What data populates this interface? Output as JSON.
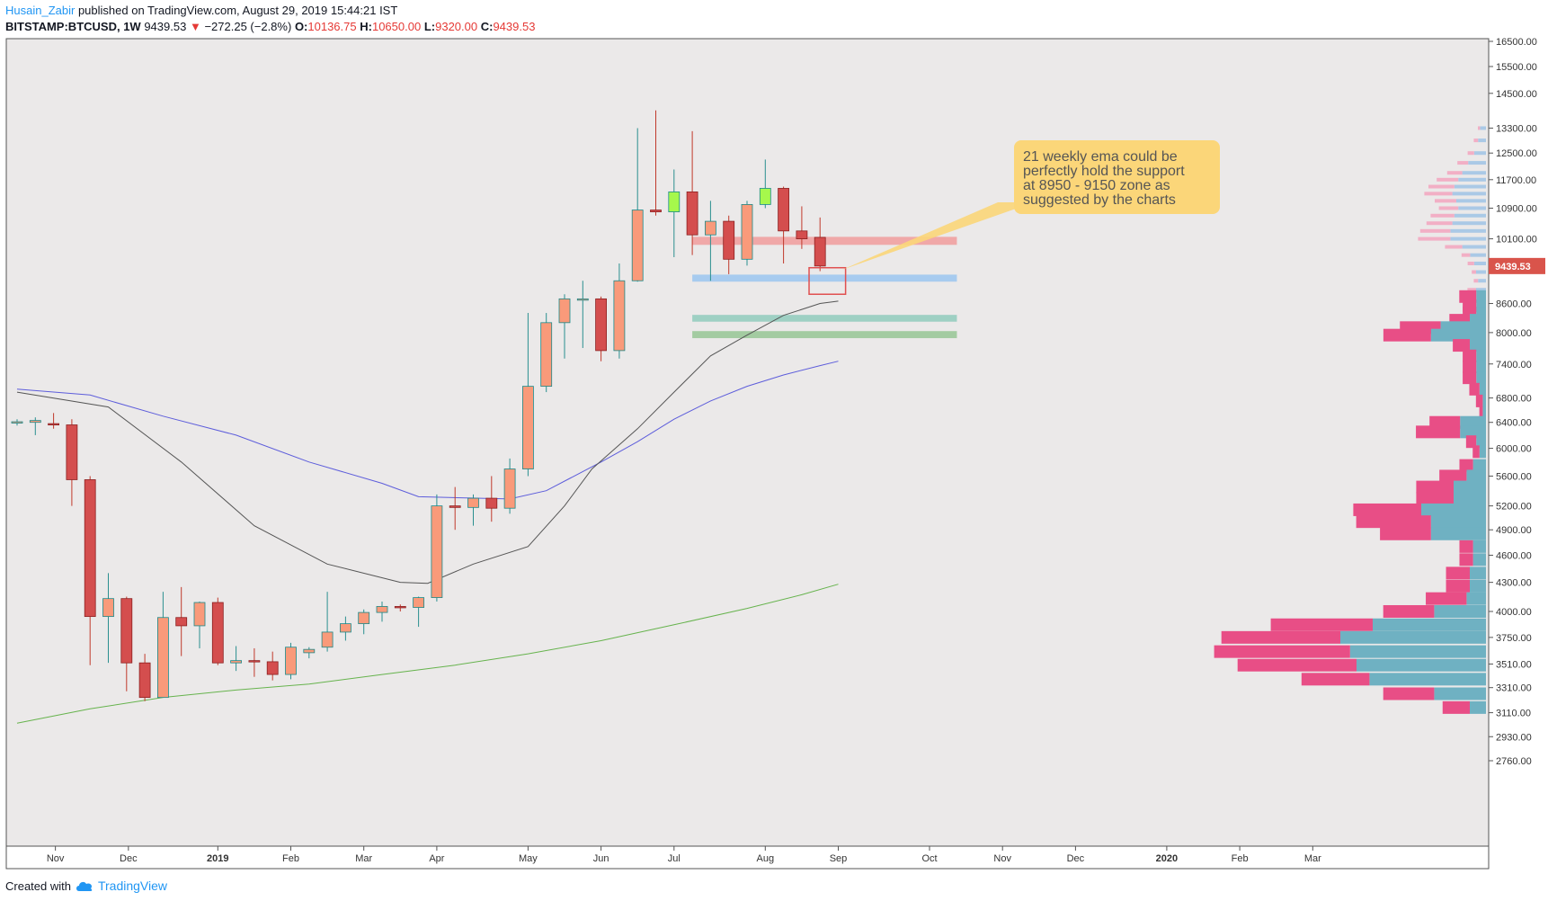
{
  "header": {
    "author": "Husain_Zabir",
    "published": "published on TradingView.com, August 29, 2019 15:44:21 IST",
    "symbol": "BITSTAMP:BTCUSD, 1W",
    "last": "9439.53",
    "arrow": "▼",
    "change": "−272.25 (−2.8%)",
    "o_label": "O:",
    "o_value": "10136.75",
    "h_label": "H:",
    "h_value": "10650.00",
    "l_label": "L:",
    "l_value": "9320.00",
    "c_label": "C:",
    "c_value": "9439.53"
  },
  "footer": {
    "created_with": "Created with",
    "brand": "TradingView",
    "logo_icon": "tradingview-cloud-icon"
  },
  "annotation": {
    "lines": [
      "21 weekly ema could be",
      "perfectly hold the support",
      "at 8950 - 9150 zone as",
      "suggested by the charts"
    ]
  },
  "colors": {
    "background": "#ebe9e9",
    "up": "#f99a7a",
    "down": "#d44e4e",
    "highlight_up": "#a6f84c",
    "ema21": "#555555",
    "ema50": "#5d5ddb",
    "ema200": "#66b34d",
    "vp_sell": "#e84e86",
    "vp_buy": "#6fb1c2",
    "price_tag": "#d9544b",
    "callout": "#fbd679"
  },
  "chart_data": {
    "type": "candlestick",
    "scale": "log",
    "ylim": [
      2700,
      17500
    ],
    "yticks": [
      "16500.00",
      "15500.00",
      "14500.00",
      "13300.00",
      "12500.00",
      "11700.00",
      "10900.00",
      "10100.00",
      "8600.00",
      "8000.00",
      "7400.00",
      "6800.00",
      "6400.00",
      "6000.00",
      "5600.00",
      "5200.00",
      "4900.00",
      "4600.00",
      "4300.00",
      "4000.00",
      "3750.00",
      "3510.00",
      "3310.00",
      "3110.00",
      "2930.00",
      "2760.00"
    ],
    "last_price_tag": "9439.53",
    "xticks": [
      {
        "label": "Nov",
        "week": 2.1
      },
      {
        "label": "Dec",
        "week": 6.1
      },
      {
        "label": "2019",
        "week": 11.0
      },
      {
        "label": "Feb",
        "week": 15.0
      },
      {
        "label": "Mar",
        "week": 19.0
      },
      {
        "label": "Apr",
        "week": 23.0
      },
      {
        "label": "May",
        "week": 28.0
      },
      {
        "label": "Jun",
        "week": 32.0
      },
      {
        "label": "Jul",
        "week": 36.0
      },
      {
        "label": "Aug",
        "week": 41.0
      },
      {
        "label": "Sep",
        "week": 45.0
      },
      {
        "label": "Oct",
        "week": 50.0
      },
      {
        "label": "Nov",
        "week": 54.0
      },
      {
        "label": "Dec",
        "week": 58.0
      },
      {
        "label": "2020",
        "week": 63.0
      },
      {
        "label": "Feb",
        "week": 67.0
      },
      {
        "label": "Mar",
        "week": 71.0
      }
    ],
    "candles": [
      {
        "o": 6400,
        "h": 6450,
        "l": 6350,
        "c": 6410
      },
      {
        "o": 6400,
        "h": 6480,
        "l": 6200,
        "c": 6430
      },
      {
        "o": 6380,
        "h": 6550,
        "l": 6300,
        "c": 6360
      },
      {
        "o": 6360,
        "h": 6450,
        "l": 5200,
        "c": 5550
      },
      {
        "o": 5550,
        "h": 5600,
        "l": 3500,
        "c": 3950
      },
      {
        "o": 3950,
        "h": 4400,
        "l": 3520,
        "c": 4130
      },
      {
        "o": 4130,
        "h": 4150,
        "l": 3280,
        "c": 3520
      },
      {
        "o": 3520,
        "h": 3600,
        "l": 3200,
        "c": 3230
      },
      {
        "o": 3230,
        "h": 4200,
        "l": 3240,
        "c": 3940
      },
      {
        "o": 3940,
        "h": 4250,
        "l": 3580,
        "c": 3860
      },
      {
        "o": 3860,
        "h": 4100,
        "l": 3650,
        "c": 4090
      },
      {
        "o": 4090,
        "h": 4140,
        "l": 3500,
        "c": 3520
      },
      {
        "o": 3520,
        "h": 3670,
        "l": 3450,
        "c": 3540
      },
      {
        "o": 3540,
        "h": 3650,
        "l": 3400,
        "c": 3530
      },
      {
        "o": 3530,
        "h": 3620,
        "l": 3370,
        "c": 3420
      },
      {
        "o": 3420,
        "h": 3700,
        "l": 3380,
        "c": 3660
      },
      {
        "o": 3610,
        "h": 3660,
        "l": 3560,
        "c": 3640
      },
      {
        "o": 3660,
        "h": 4200,
        "l": 3620,
        "c": 3800
      },
      {
        "o": 3800,
        "h": 3950,
        "l": 3720,
        "c": 3880
      },
      {
        "o": 3880,
        "h": 4020,
        "l": 3780,
        "c": 3990
      },
      {
        "o": 3990,
        "h": 4100,
        "l": 3900,
        "c": 4050
      },
      {
        "o": 4050,
        "h": 4070,
        "l": 4000,
        "c": 4040
      },
      {
        "o": 4040,
        "h": 4150,
        "l": 3850,
        "c": 4140
      },
      {
        "o": 4140,
        "h": 5350,
        "l": 4100,
        "c": 5200
      },
      {
        "o": 5200,
        "h": 5450,
        "l": 4900,
        "c": 5180
      },
      {
        "o": 5180,
        "h": 5350,
        "l": 4950,
        "c": 5300
      },
      {
        "o": 5300,
        "h": 5600,
        "l": 5000,
        "c": 5170
      },
      {
        "o": 5170,
        "h": 5850,
        "l": 5100,
        "c": 5700
      },
      {
        "o": 5700,
        "h": 8400,
        "l": 5600,
        "c": 7000
      },
      {
        "o": 7000,
        "h": 8400,
        "l": 6900,
        "c": 8200
      },
      {
        "o": 8200,
        "h": 8800,
        "l": 7500,
        "c": 8700
      },
      {
        "o": 8700,
        "h": 9100,
        "l": 7700,
        "c": 8700
      },
      {
        "o": 8700,
        "h": 8750,
        "l": 7450,
        "c": 7650
      },
      {
        "o": 7650,
        "h": 9500,
        "l": 7500,
        "c": 9100
      },
      {
        "o": 9100,
        "h": 13300,
        "l": 9080,
        "c": 10850
      },
      {
        "o": 10850,
        "h": 13900,
        "l": 10700,
        "c": 10800
      },
      {
        "o": 10800,
        "h": 12000,
        "l": 9650,
        "c": 11350
      },
      {
        "o": 11350,
        "h": 13200,
        "l": 9700,
        "c": 10200
      },
      {
        "o": 10200,
        "h": 11100,
        "l": 9100,
        "c": 10550
      },
      {
        "o": 10550,
        "h": 10700,
        "l": 9250,
        "c": 9600
      },
      {
        "o": 9600,
        "h": 11100,
        "l": 9450,
        "c": 11000
      },
      {
        "o": 11000,
        "h": 12300,
        "l": 10900,
        "c": 11450
      },
      {
        "o": 11450,
        "h": 11500,
        "l": 9500,
        "c": 10300
      },
      {
        "o": 10300,
        "h": 10950,
        "l": 9850,
        "c": 10100
      },
      {
        "o": 10136.75,
        "h": 10650,
        "l": 9320,
        "c": 9439.53
      }
    ],
    "highlight_weeks": [
      36,
      41
    ],
    "ema21": [
      [
        0,
        6900
      ],
      [
        5,
        6650
      ],
      [
        9,
        5800
      ],
      [
        13,
        4950
      ],
      [
        17,
        4500
      ],
      [
        21,
        4300
      ],
      [
        22.5,
        4290
      ],
      [
        25,
        4500
      ],
      [
        28,
        4700
      ],
      [
        30,
        5200
      ],
      [
        31.5,
        5700
      ],
      [
        34,
        6300
      ],
      [
        36,
        6900
      ],
      [
        38,
        7550
      ],
      [
        40,
        7950
      ],
      [
        42,
        8350
      ],
      [
        44,
        8600
      ],
      [
        45,
        8650
      ]
    ],
    "ema50": [
      [
        0,
        6950
      ],
      [
        4,
        6850
      ],
      [
        8,
        6500
      ],
      [
        12,
        6200
      ],
      [
        16,
        5800
      ],
      [
        20,
        5500
      ],
      [
        22,
        5320
      ],
      [
        27,
        5290
      ],
      [
        29,
        5400
      ],
      [
        32,
        5800
      ],
      [
        34,
        6100
      ],
      [
        36,
        6450
      ],
      [
        38,
        6750
      ],
      [
        40,
        7000
      ],
      [
        42,
        7200
      ],
      [
        44,
        7370
      ],
      [
        45,
        7450
      ]
    ],
    "ema200": [
      [
        0,
        3030
      ],
      [
        4,
        3140
      ],
      [
        8,
        3230
      ],
      [
        12,
        3290
      ],
      [
        16,
        3340
      ],
      [
        20,
        3420
      ],
      [
        24,
        3500
      ],
      [
        28,
        3600
      ],
      [
        32,
        3720
      ],
      [
        36,
        3870
      ],
      [
        40,
        4030
      ],
      [
        43,
        4170
      ],
      [
        45,
        4280
      ]
    ],
    "zones": [
      {
        "from": 9950,
        "to": 10150,
        "color": "#f0a8a8"
      },
      {
        "from": 9080,
        "to": 9240,
        "color": "#a7cbef"
      },
      {
        "from": 8220,
        "to": 8360,
        "color": "#9ed0c3"
      },
      {
        "from": 7890,
        "to": 8030,
        "color": "#a3cba1"
      }
    ],
    "zone_weeks": [
      37,
      51.5
    ],
    "marker_box": {
      "price_high": 9400,
      "price_low": 8800,
      "week_from": 43.4,
      "week_to": 45.4
    },
    "callout_anchor": {
      "price": 9350,
      "week": 45.2
    },
    "volume_profile_upper": [
      {
        "price": 13300,
        "sell": 1,
        "buy": 3
      },
      {
        "price": 12900,
        "sell": 2,
        "buy": 4
      },
      {
        "price": 12500,
        "sell": 3,
        "buy": 6
      },
      {
        "price": 12200,
        "sell": 5,
        "buy": 9
      },
      {
        "price": 11900,
        "sell": 7,
        "buy": 12
      },
      {
        "price": 11700,
        "sell": 10,
        "buy": 14
      },
      {
        "price": 11500,
        "sell": 12,
        "buy": 16
      },
      {
        "price": 11300,
        "sell": 13,
        "buy": 17
      },
      {
        "price": 11100,
        "sell": 10,
        "buy": 15
      },
      {
        "price": 10900,
        "sell": 9,
        "buy": 14
      },
      {
        "price": 10700,
        "sell": 11,
        "buy": 16
      },
      {
        "price": 10500,
        "sell": 12,
        "buy": 17
      },
      {
        "price": 10300,
        "sell": 14,
        "buy": 18
      },
      {
        "price": 10100,
        "sell": 15,
        "buy": 18
      },
      {
        "price": 9900,
        "sell": 8,
        "buy": 12
      },
      {
        "price": 9700,
        "sell": 4,
        "buy": 8
      },
      {
        "price": 9500,
        "sell": 3,
        "buy": 6
      },
      {
        "price": 9300,
        "sell": 2,
        "buy": 5
      },
      {
        "price": 9100,
        "sell": 2,
        "buy": 4
      },
      {
        "price": 8900,
        "sell": 4,
        "buy": 5
      }
    ],
    "volume_profile_lower": [
      {
        "price": 8750,
        "sell": 5,
        "buy": 3
      },
      {
        "price": 8550,
        "sell": 4,
        "buy": 3
      },
      {
        "price": 8400,
        "sell": 4,
        "buy": 3
      },
      {
        "price": 8250,
        "sell": 6,
        "buy": 5
      },
      {
        "price": 8100,
        "sell": 12,
        "buy": 14
      },
      {
        "price": 7950,
        "sell": 14,
        "buy": 17
      },
      {
        "price": 7750,
        "sell": 5,
        "buy": 5
      },
      {
        "price": 7550,
        "sell": 4,
        "buy": 3
      },
      {
        "price": 7350,
        "sell": 4,
        "buy": 3
      },
      {
        "price": 7150,
        "sell": 4,
        "buy": 3
      },
      {
        "price": 6950,
        "sell": 3,
        "buy": 2
      },
      {
        "price": 6750,
        "sell": 2,
        "buy": 1
      },
      {
        "price": 6550,
        "sell": 1,
        "buy": 1
      },
      {
        "price": 6400,
        "sell": 9,
        "buy": 8
      },
      {
        "price": 6250,
        "sell": 13,
        "buy": 8
      },
      {
        "price": 6100,
        "sell": 3,
        "buy": 3
      },
      {
        "price": 5950,
        "sell": 2,
        "buy": 2
      },
      {
        "price": 5750,
        "sell": 4,
        "buy": 4
      },
      {
        "price": 5600,
        "sell": 8,
        "buy": 6
      },
      {
        "price": 5450,
        "sell": 11,
        "buy": 10
      },
      {
        "price": 5300,
        "sell": 11,
        "buy": 10
      },
      {
        "price": 5150,
        "sell": 20,
        "buy": 20
      },
      {
        "price": 5000,
        "sell": 22,
        "buy": 17
      },
      {
        "price": 4850,
        "sell": 15,
        "buy": 17
      },
      {
        "price": 4700,
        "sell": 4,
        "buy": 4
      },
      {
        "price": 4550,
        "sell": 4,
        "buy": 4
      },
      {
        "price": 4400,
        "sell": 7,
        "buy": 5
      },
      {
        "price": 4260,
        "sell": 7,
        "buy": 5
      },
      {
        "price": 4130,
        "sell": 12,
        "buy": 6
      },
      {
        "price": 4000,
        "sell": 15,
        "buy": 16
      },
      {
        "price": 3870,
        "sell": 30,
        "buy": 35
      },
      {
        "price": 3750,
        "sell": 35,
        "buy": 45
      },
      {
        "price": 3620,
        "sell": 40,
        "buy": 42
      },
      {
        "price": 3500,
        "sell": 35,
        "buy": 40
      },
      {
        "price": 3380,
        "sell": 20,
        "buy": 36
      },
      {
        "price": 3260,
        "sell": 15,
        "buy": 16
      },
      {
        "price": 3150,
        "sell": 8,
        "buy": 5
      }
    ]
  }
}
